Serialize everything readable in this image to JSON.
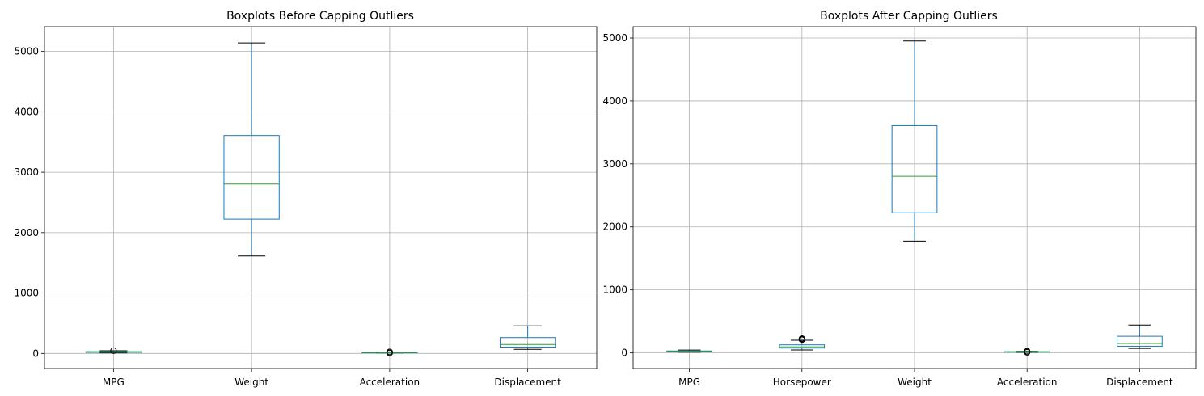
{
  "chart_data": [
    {
      "type": "boxplot",
      "title": "Boxplots Before Capping Outliers",
      "xlabel": "",
      "ylabel": "",
      "ylim": [
        -250,
        5410
      ],
      "yticks": [
        0,
        1000,
        2000,
        3000,
        4000,
        5000
      ],
      "grid": true,
      "categories": [
        "MPG",
        "Weight",
        "Acceleration",
        "Displacement"
      ],
      "boxes": [
        {
          "label": "MPG",
          "whisker_low": 9,
          "q1": 17.5,
          "median": 23,
          "q3": 29,
          "whisker_high": 44.6,
          "fliers": [
            46.6
          ]
        },
        {
          "label": "Weight",
          "whisker_low": 1613,
          "q1": 2224,
          "median": 2804,
          "q3": 3608,
          "whisker_high": 5140,
          "fliers": []
        },
        {
          "label": "Acceleration",
          "whisker_low": 8.5,
          "q1": 13.8,
          "median": 15.5,
          "q3": 17.2,
          "whisker_high": 22.2,
          "fliers": [
            23.5,
            24.8,
            8.0
          ]
        },
        {
          "label": "Displacement",
          "whisker_low": 68,
          "q1": 104,
          "median": 148,
          "q3": 262,
          "whisker_high": 455,
          "fliers": []
        }
      ]
    },
    {
      "type": "boxplot",
      "title": "Boxplots After Capping Outliers",
      "xlabel": "",
      "ylabel": "",
      "ylim": [
        -250,
        5180
      ],
      "yticks": [
        0,
        1000,
        2000,
        3000,
        4000,
        5000
      ],
      "grid": true,
      "categories": [
        "MPG",
        "Horsepower",
        "Weight",
        "Acceleration",
        "Displacement"
      ],
      "boxes": [
        {
          "label": "MPG",
          "whisker_low": 10,
          "q1": 17.5,
          "median": 23,
          "q3": 29,
          "whisker_high": 44,
          "fliers": []
        },
        {
          "label": "Horsepower",
          "whisker_low": 46,
          "q1": 75,
          "median": 93,
          "q3": 126,
          "whisker_high": 200,
          "fliers": [
            208,
            215,
            225
          ]
        },
        {
          "label": "Weight",
          "whisker_low": 1773,
          "q1": 2224,
          "median": 2804,
          "q3": 3608,
          "whisker_high": 4952,
          "fliers": []
        },
        {
          "label": "Acceleration",
          "whisker_low": 8.5,
          "q1": 13.8,
          "median": 15.5,
          "q3": 17.2,
          "whisker_high": 22,
          "fliers": [
            23.5,
            24.8,
            8.0
          ]
        },
        {
          "label": "Displacement",
          "whisker_low": 70,
          "q1": 104,
          "median": 148,
          "q3": 262,
          "whisker_high": 440,
          "fliers": []
        }
      ]
    }
  ],
  "colors": {
    "box": "#1f77b4",
    "median": "#2ca02c",
    "whisker_cap": "#000000",
    "flier": "#000000",
    "grid": "#b0b0b0",
    "axis": "#000000"
  }
}
